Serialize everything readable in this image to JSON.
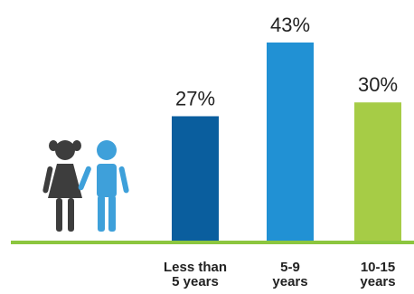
{
  "chart_data": {
    "type": "bar",
    "categories": [
      "Less than 5 years",
      "5-9 years",
      "10-15 years"
    ],
    "category_lines": [
      [
        "Less than",
        "5 years"
      ],
      [
        "5-9",
        "years"
      ],
      [
        "10-15",
        "years"
      ]
    ],
    "values": [
      27,
      43,
      30
    ],
    "value_labels": [
      "27%",
      "43%",
      "30%"
    ],
    "bar_colors": [
      "#0a5e9e",
      "#2191d4",
      "#a6cc46"
    ],
    "baseline_color": "#8cc63f",
    "ylim": [
      0,
      43
    ],
    "grid": false,
    "icon": "children-holding-hands-icon",
    "icon_colors": [
      "#3d3d3d",
      "#3ea0da"
    ]
  }
}
